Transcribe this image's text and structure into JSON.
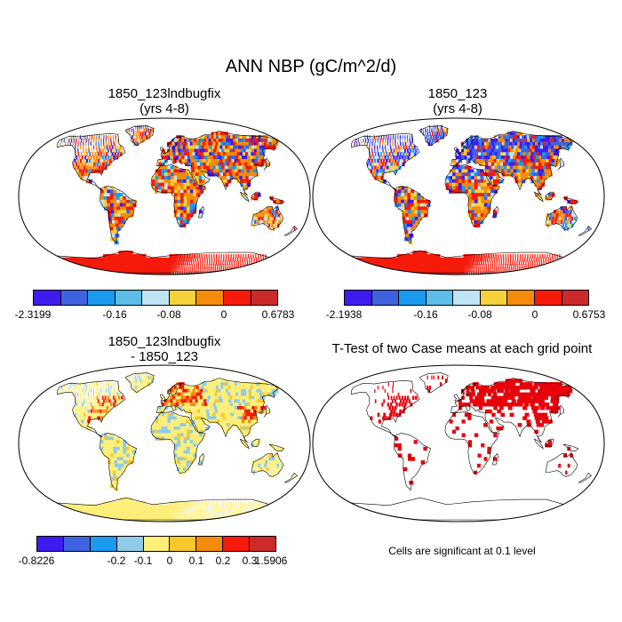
{
  "title": "ANN NBP (gC/m^2/d)",
  "panels": [
    {
      "line1": "1850_123lndbugfix",
      "line2": "(yrs 4-8)"
    },
    {
      "line1": "1850_123",
      "line2": "(yrs 4-8)"
    },
    {
      "line1": "1850_123lndbugfix",
      "line2": "- 1850_123"
    },
    {
      "line1": "T-Test of two Case means at each grid point",
      "line2": ""
    }
  ],
  "colorbars": [
    {
      "colors": [
        "#3e1cf0",
        "#3f62e0",
        "#1a9bf0",
        "#5cbde8",
        "#bfe4f4",
        "#f6d13a",
        "#f58b0a",
        "#f51a0a",
        "#cc2a2a"
      ],
      "labels": [
        "-2.3199",
        "-0.16",
        "-0.08",
        "0",
        "0.6783"
      ]
    },
    {
      "colors": [
        "#3e1cf0",
        "#3f62e0",
        "#1a9bf0",
        "#5cbde8",
        "#bfe4f4",
        "#f6d13a",
        "#f58b0a",
        "#f51a0a",
        "#cc2a2a"
      ],
      "labels": [
        "-2.1938",
        "-0.16",
        "-0.08",
        "0",
        "0.6753"
      ]
    },
    {
      "colors": [
        "#3e1cf0",
        "#3f62e0",
        "#1a9bf0",
        "#8fcbe8",
        "#fdef7a",
        "#f6c82a",
        "#f58b0a",
        "#f51a0a",
        "#cc2a2a"
      ],
      "labels": [
        "-0.8226",
        "-0.2",
        "-0.1",
        "0",
        "0.1",
        "0.2",
        "0.3",
        "1.5906"
      ]
    }
  ],
  "note": "Cells are significant at 0.1 level"
}
